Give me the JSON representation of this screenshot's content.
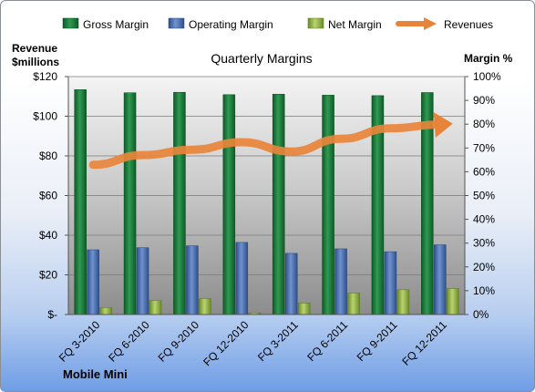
{
  "chart_data": {
    "type": "bar",
    "title": "Quarterly Margins",
    "footer": "Mobile Mini",
    "categories": [
      "FQ 3-2010",
      "FQ 6-2010",
      "FQ 9-2010",
      "FQ 12-2010",
      "FQ 3-2011",
      "FQ 6-2011",
      "FQ 9-2011",
      "FQ 12-2011"
    ],
    "left_axis": {
      "label_line1": "Revenue",
      "label_line2": "$millions",
      "min": 0,
      "max": 120,
      "step": 20,
      "tick_labels": [
        "$-",
        "$20",
        "$40",
        "$60",
        "$80",
        "$100",
        "$120"
      ]
    },
    "right_axis": {
      "label": "Margin %",
      "min": 0,
      "max": 100,
      "step": 10,
      "tick_labels": [
        "0%",
        "10%",
        "20%",
        "30%",
        "40%",
        "50%",
        "60%",
        "70%",
        "80%",
        "90%",
        "100%"
      ]
    },
    "series": [
      {
        "name": "Gross Margin",
        "axis": "right",
        "kind": "bar",
        "color": "#1f7a3a",
        "values": [
          94.5,
          93.2,
          93.4,
          92.4,
          92.6,
          92.2,
          92.0,
          93.3
        ]
      },
      {
        "name": "Operating Margin",
        "axis": "right",
        "kind": "bar",
        "color": "#4a6fae",
        "values": [
          27.2,
          28.1,
          28.9,
          30.3,
          25.7,
          27.6,
          26.4,
          29.3
        ]
      },
      {
        "name": "Net Margin",
        "axis": "right",
        "kind": "bar",
        "color": "#8fb04a",
        "values": [
          2.9,
          5.9,
          6.7,
          0.7,
          4.8,
          9.0,
          10.4,
          10.9
        ]
      },
      {
        "name": "Revenues",
        "axis": "left",
        "kind": "line",
        "color": "#e8843a",
        "values": [
          75.5,
          80.4,
          83.1,
          86.9,
          82.2,
          88.6,
          93.9,
          95.8
        ]
      }
    ],
    "grid": true,
    "legend_position": "top"
  }
}
